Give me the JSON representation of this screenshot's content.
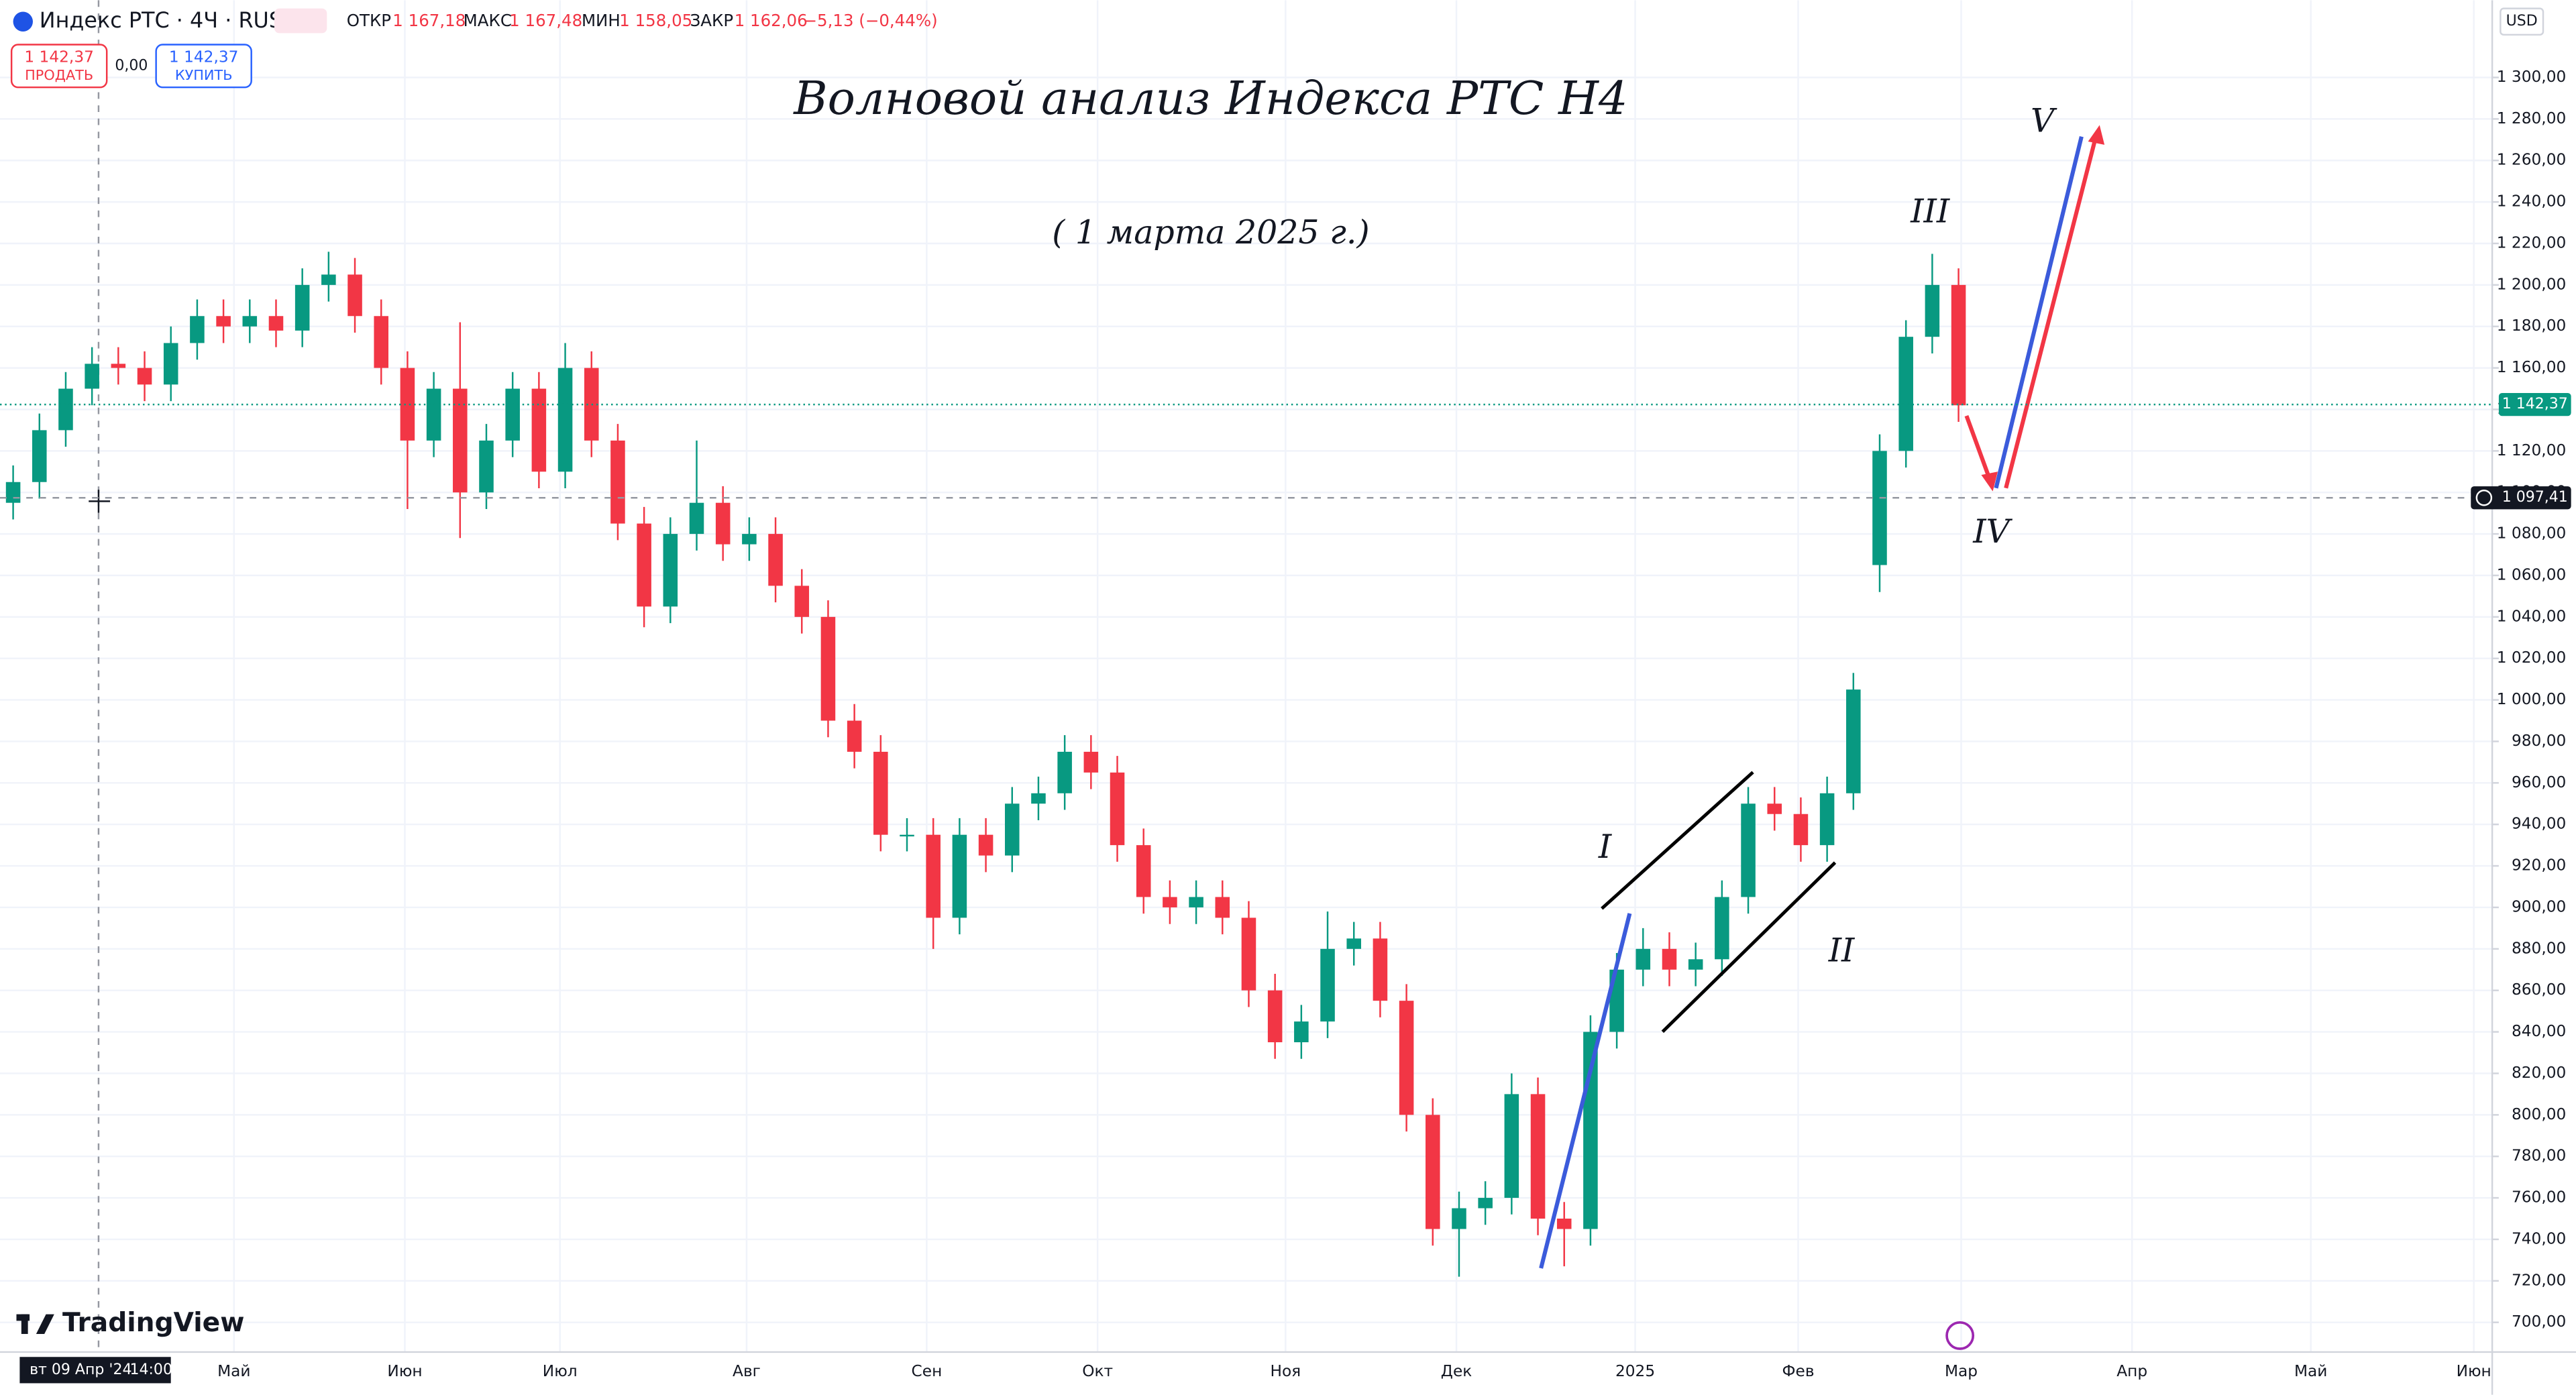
{
  "header": {
    "symbol": "Индекс РТС · 4Ч · RUS",
    "open_label": "ОТКР",
    "open_value": "1 167,18",
    "high_label": "МАКС",
    "high_value": "1 167,48",
    "low_label": "МИН",
    "low_value": "1 158,05",
    "close_label": "ЗАКР",
    "close_value": "1 162,06",
    "change": "−5,13 (−0,44%)"
  },
  "trade": {
    "sell_price": "1 142,37",
    "sell_label": "ПРОДАТЬ",
    "spread": "0,00",
    "buy_price": "1 142,37",
    "buy_label": "КУПИТЬ"
  },
  "watermark": "TradingView",
  "chart_data": {
    "type": "candlestick",
    "title": "Волновой анализ Индекса РТС H4",
    "subtitle": "( 1 марта 2025 г.)",
    "currency": "USD",
    "up_color": "#089981",
    "down_color": "#f23645",
    "open": [
      1095,
      1105,
      1130,
      1150,
      1162,
      1160,
      1152,
      1172,
      1185,
      1180,
      1185,
      1178,
      1200,
      1205,
      1185,
      1160,
      1125,
      1150,
      1100,
      1125,
      1150,
      1110,
      1160,
      1125,
      1085,
      1045,
      1080,
      1095,
      1075,
      1080,
      1055,
      1040,
      990,
      975,
      935,
      935,
      895,
      935,
      925,
      950,
      955,
      975,
      965,
      930,
      905,
      900,
      905,
      895,
      860,
      835,
      845,
      880,
      885,
      855,
      800,
      745,
      755,
      760,
      810,
      750,
      745,
      840,
      870,
      880,
      870,
      875,
      905,
      950,
      945,
      930,
      955,
      1065,
      1120,
      1175,
      1200
    ],
    "high": [
      1113,
      1138,
      1158,
      1170,
      1170,
      1168,
      1180,
      1193,
      1193,
      1193,
      1193,
      1208,
      1216,
      1213,
      1193,
      1168,
      1158,
      1182,
      1133,
      1158,
      1158,
      1172,
      1168,
      1133,
      1093,
      1088,
      1125,
      1103,
      1088,
      1088,
      1063,
      1048,
      998,
      983,
      943,
      943,
      943,
      943,
      958,
      963,
      983,
      983,
      973,
      938,
      913,
      913,
      913,
      903,
      868,
      853,
      898,
      893,
      893,
      863,
      808,
      763,
      768,
      820,
      818,
      758,
      848,
      878,
      890,
      888,
      883,
      913,
      958,
      958,
      953,
      963,
      1013,
      1128,
      1183,
      1215,
      1208
    ],
    "low": [
      1087,
      1097,
      1122,
      1142,
      1152,
      1144,
      1144,
      1164,
      1172,
      1172,
      1170,
      1170,
      1192,
      1177,
      1152,
      1092,
      1117,
      1078,
      1092,
      1117,
      1102,
      1102,
      1117,
      1077,
      1035,
      1037,
      1072,
      1067,
      1067,
      1047,
      1032,
      982,
      967,
      927,
      927,
      880,
      887,
      917,
      917,
      942,
      947,
      957,
      922,
      897,
      892,
      892,
      887,
      852,
      827,
      827,
      837,
      872,
      847,
      792,
      737,
      722,
      747,
      752,
      742,
      727,
      737,
      832,
      862,
      862,
      862,
      867,
      897,
      937,
      922,
      922,
      947,
      1052,
      1112,
      1167,
      1134
    ],
    "close": [
      1105,
      1130,
      1150,
      1162,
      1160,
      1152,
      1172,
      1185,
      1180,
      1185,
      1178,
      1200,
      1205,
      1185,
      1160,
      1125,
      1150,
      1100,
      1125,
      1150,
      1110,
      1160,
      1125,
      1085,
      1045,
      1080,
      1095,
      1075,
      1080,
      1055,
      1040,
      990,
      975,
      935,
      935,
      895,
      935,
      925,
      950,
      955,
      975,
      965,
      930,
      905,
      900,
      905,
      895,
      860,
      835,
      845,
      880,
      885,
      855,
      800,
      745,
      755,
      760,
      810,
      750,
      745,
      840,
      870,
      880,
      870,
      875,
      905,
      950,
      945,
      930,
      955,
      1005,
      1120,
      1175,
      1200,
      1142
    ],
    "xlim": [
      -0.5,
      94.3
    ],
    "xticks": [
      {
        "value": 8.4,
        "label": "Май"
      },
      {
        "value": 14.9,
        "label": "Июн"
      },
      {
        "value": 20.8,
        "label": "Июл"
      },
      {
        "value": 27.9,
        "label": "Авг"
      },
      {
        "value": 34.75,
        "label": "Сен"
      },
      {
        "value": 41.25,
        "label": "Окт"
      },
      {
        "value": 48.4,
        "label": "Ноя"
      },
      {
        "value": 54.9,
        "label": "Дек"
      },
      {
        "value": 61.7,
        "label": "2025"
      },
      {
        "value": 67.9,
        "label": "Фев"
      },
      {
        "value": 74.1,
        "label": "Мар"
      },
      {
        "value": 80.6,
        "label": "Апр"
      },
      {
        "value": 87.4,
        "label": "Май"
      },
      {
        "value": 93.6,
        "label": "Июн"
      }
    ],
    "ylim": [
      685.7,
      1337.2
    ],
    "yticks": [
      {
        "value": 700,
        "label": "700,00"
      },
      {
        "value": 720,
        "label": "720,00"
      },
      {
        "value": 740,
        "label": "740,00"
      },
      {
        "value": 760,
        "label": "760,00"
      },
      {
        "value": 780,
        "label": "780,00"
      },
      {
        "value": 800,
        "label": "800,00"
      },
      {
        "value": 820,
        "label": "820,00"
      },
      {
        "value": 840,
        "label": "840,00"
      },
      {
        "value": 860,
        "label": "860,00"
      },
      {
        "value": 880,
        "label": "880,00"
      },
      {
        "value": 900,
        "label": "900,00"
      },
      {
        "value": 920,
        "label": "920,00"
      },
      {
        "value": 940,
        "label": "940,00"
      },
      {
        "value": 960,
        "label": "960,00"
      },
      {
        "value": 980,
        "label": "980,00"
      },
      {
        "value": 1000,
        "label": "1 000,00"
      },
      {
        "value": 1020,
        "label": "1 020,00"
      },
      {
        "value": 1040,
        "label": "1 040,00"
      },
      {
        "value": 1060,
        "label": "1 060,00"
      },
      {
        "value": 1080,
        "label": "1 080,00"
      },
      {
        "value": 1100,
        "label": "1 100,00"
      },
      {
        "value": 1120,
        "label": "1 120,00"
      },
      {
        "value": 1140,
        "label": "1 140,00"
      },
      {
        "value": 1160,
        "label": "1 160,00"
      },
      {
        "value": 1180,
        "label": "1 180,00"
      },
      {
        "value": 1200,
        "label": "1 200,00"
      },
      {
        "value": 1220,
        "label": "1 220,00"
      },
      {
        "value": 1240,
        "label": "1 240,00"
      },
      {
        "value": 1260,
        "label": "1 260,00"
      },
      {
        "value": 1280,
        "label": "1 280,00"
      },
      {
        "value": 1300,
        "label": "1 300,00"
      }
    ],
    "grid": true,
    "last_price": {
      "value": 1142.37,
      "label": "1 142,37"
    },
    "crosshair_price": {
      "value": 1097.41,
      "label": "1 097,41"
    },
    "crosshair_date": "вт 09 Апр '24",
    "crosshair_time": "14:00",
    "wave_labels": [
      "I",
      "II",
      "III",
      "IV",
      "V"
    ]
  }
}
